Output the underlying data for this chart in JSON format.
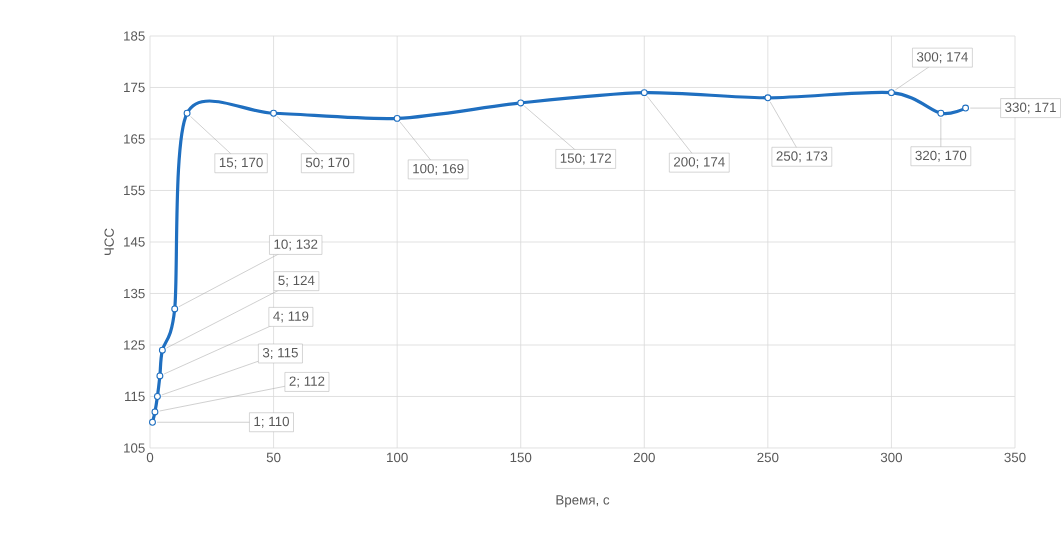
{
  "chart_data": {
    "type": "line",
    "xlabel": "Время, с",
    "ylabel": "ЧСС",
    "x": [
      1,
      2,
      3,
      4,
      5,
      10,
      15,
      50,
      100,
      150,
      200,
      250,
      300,
      320,
      330
    ],
    "series": [
      {
        "color": "#1f6fc0",
        "values": [
          110,
          112,
          115,
          119,
          124,
          132,
          170,
          170,
          169,
          172,
          174,
          173,
          174,
          170,
          171
        ],
        "value_labels": [
          "1; 110",
          "2; 112",
          "3; 115",
          "4; 119",
          "5; 124",
          "10; 132",
          "15; 170",
          "50; 170",
          "100; 169",
          "150; 172",
          "200; 174",
          "250; 173",
          "300; 174",
          "320; 170",
          "330; 171"
        ]
      }
    ],
    "xlim": [
      0,
      350
    ],
    "xticks": [
      0,
      50,
      100,
      150,
      200,
      250,
      300,
      350
    ],
    "ylim": [
      105,
      185
    ],
    "yticks": [
      105,
      115,
      125,
      135,
      145,
      155,
      165,
      175,
      185
    ],
    "grid": true,
    "marker": "circle",
    "line_style": "solid"
  }
}
